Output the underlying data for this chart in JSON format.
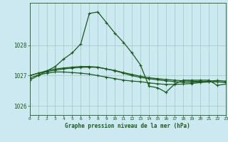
{
  "title": "Graphe pression niveau de la mer (hPa)",
  "bg_color": "#cce8f0",
  "plot_bg_color": "#cce8f0",
  "grid_color": "#99ccbb",
  "line_color": "#1a5c1a",
  "xlim": [
    0,
    23
  ],
  "ylim": [
    1025.7,
    1029.4
  ],
  "yticks": [
    1026,
    1027,
    1028
  ],
  "xticks": [
    0,
    1,
    2,
    3,
    4,
    5,
    6,
    7,
    8,
    9,
    10,
    11,
    12,
    13,
    14,
    15,
    16,
    17,
    18,
    19,
    20,
    21,
    22,
    23
  ],
  "series1": [
    1026.85,
    1027.0,
    1027.15,
    1027.3,
    1027.55,
    1027.75,
    1028.05,
    1029.05,
    1029.1,
    1028.75,
    1028.4,
    1028.1,
    1027.75,
    1027.35,
    1026.65,
    1026.6,
    1026.45,
    1026.72,
    1026.85,
    1026.85,
    1026.85,
    1026.85,
    1026.68,
    1026.72
  ],
  "series2": [
    1027.0,
    1027.08,
    1027.13,
    1027.18,
    1027.22,
    1027.25,
    1027.27,
    1027.28,
    1027.27,
    1027.22,
    1027.17,
    1027.1,
    1027.04,
    1026.98,
    1026.93,
    1026.9,
    1026.87,
    1026.85,
    1026.83,
    1026.82,
    1026.81,
    1026.8,
    1026.79,
    1026.78
  ],
  "series3": [
    1027.0,
    1027.08,
    1027.16,
    1027.22,
    1027.25,
    1027.28,
    1027.3,
    1027.3,
    1027.28,
    1027.22,
    1027.16,
    1027.08,
    1027.0,
    1026.94,
    1026.9,
    1026.86,
    1026.83,
    1026.8,
    1026.78,
    1026.78,
    1026.8,
    1026.82,
    1026.84,
    1026.82
  ],
  "series4": [
    1026.92,
    1027.02,
    1027.08,
    1027.12,
    1027.12,
    1027.1,
    1027.08,
    1027.05,
    1027.0,
    1026.95,
    1026.9,
    1026.85,
    1026.82,
    1026.8,
    1026.76,
    1026.73,
    1026.71,
    1026.71,
    1026.72,
    1026.74,
    1026.77,
    1026.79,
    1026.8,
    1026.78
  ]
}
